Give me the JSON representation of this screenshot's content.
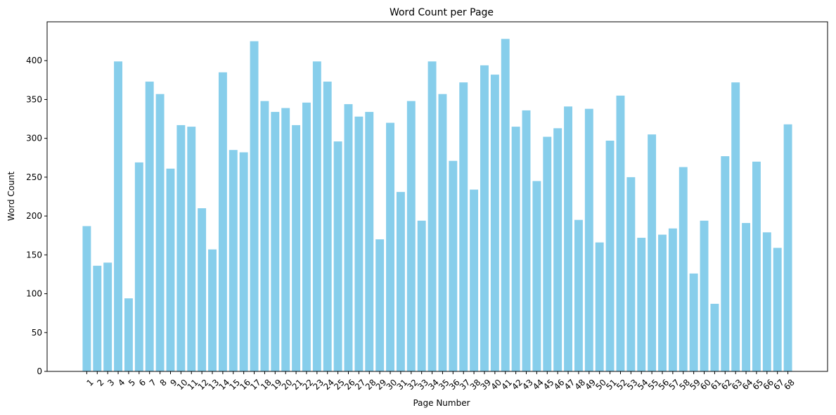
{
  "chart_data": {
    "type": "bar",
    "title": "Word Count per Page",
    "xlabel": "Page Number",
    "ylabel": "Word Count",
    "ylim": [
      0,
      450
    ],
    "yticks": [
      0,
      50,
      100,
      150,
      200,
      250,
      300,
      350,
      400
    ],
    "grid": false,
    "legend": "none",
    "bar_color": "#87ceeb",
    "categories": [
      "1",
      "2",
      "3",
      "4",
      "5",
      "6",
      "7",
      "8",
      "9",
      "10",
      "11",
      "12",
      "13",
      "14",
      "15",
      "16",
      "17",
      "18",
      "19",
      "20",
      "21",
      "22",
      "23",
      "24",
      "25",
      "26",
      "27",
      "28",
      "29",
      "30",
      "31",
      "32",
      "33",
      "34",
      "35",
      "36",
      "37",
      "38",
      "39",
      "40",
      "41",
      "42",
      "43",
      "44",
      "45",
      "46",
      "47",
      "48",
      "49",
      "50",
      "51",
      "52",
      "53",
      "54",
      "55",
      "56",
      "57",
      "58",
      "59",
      "60",
      "61",
      "62",
      "63",
      "64",
      "65",
      "66",
      "67",
      "68"
    ],
    "values": [
      187,
      136,
      140,
      399,
      94,
      269,
      373,
      357,
      261,
      317,
      315,
      210,
      157,
      385,
      285,
      282,
      425,
      348,
      334,
      339,
      317,
      346,
      399,
      373,
      296,
      344,
      328,
      334,
      170,
      320,
      231,
      348,
      194,
      399,
      357,
      271,
      372,
      234,
      394,
      382,
      428,
      315,
      336,
      245,
      302,
      313,
      341,
      195,
      338,
      166,
      297,
      355,
      250,
      172,
      305,
      176,
      184,
      263,
      126,
      194,
      87,
      277,
      372,
      191,
      270,
      179,
      159,
      318
    ]
  }
}
